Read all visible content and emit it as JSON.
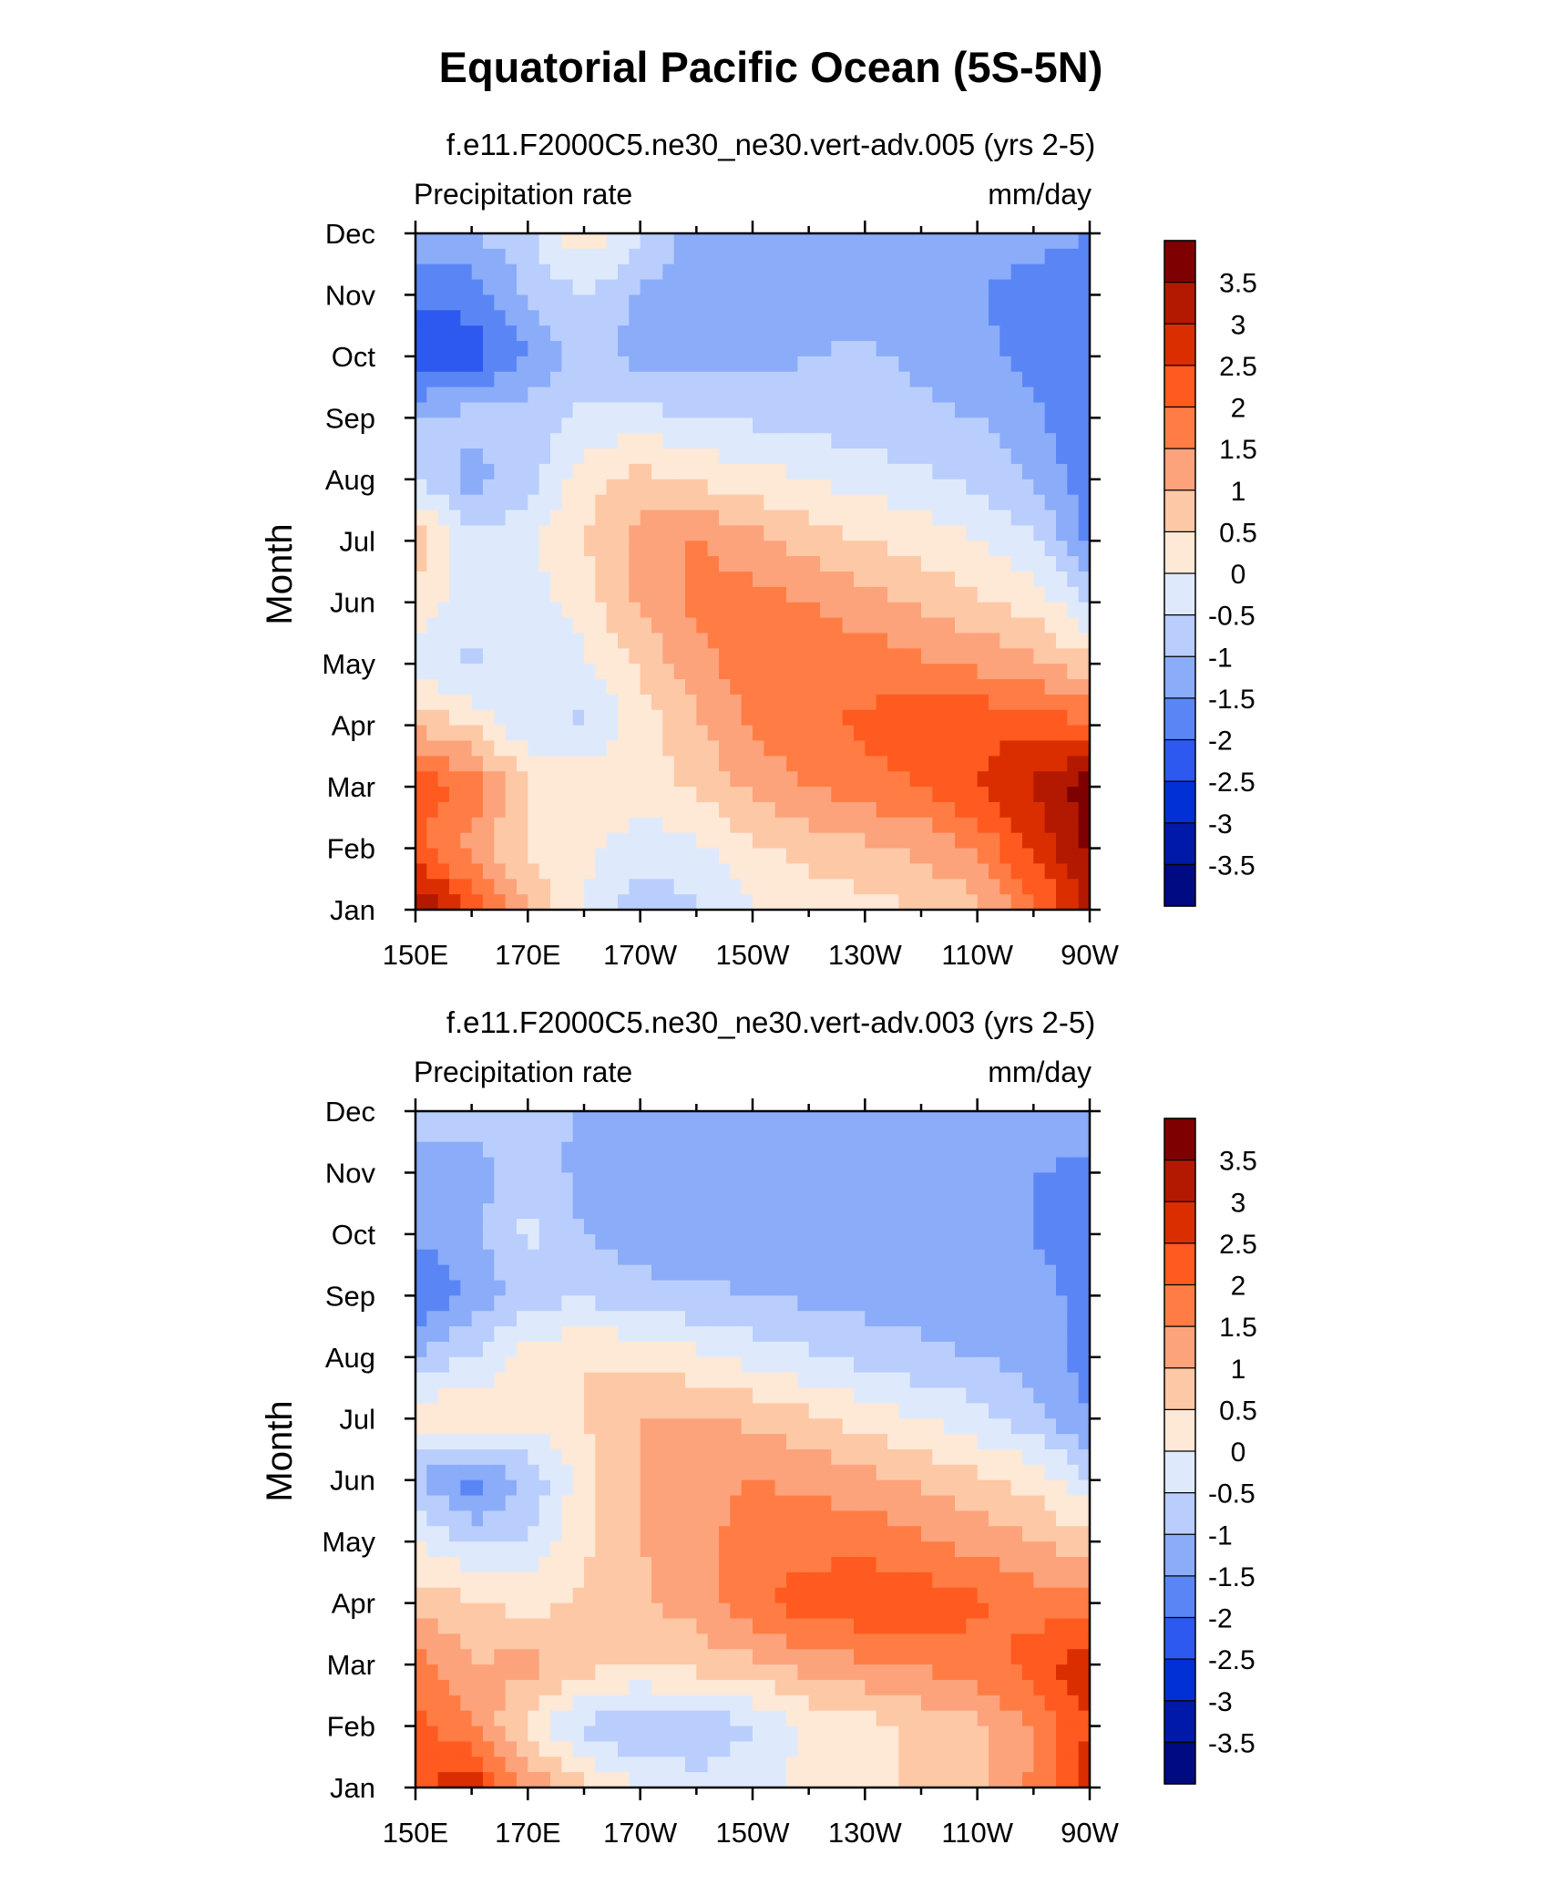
{
  "title": "Equatorial Pacific Ocean (5S-5N)",
  "chart_data": [
    {
      "type": "heatmap",
      "subtitle": "f.e11.F2000C5.ne30_ne30.vert-adv.005 (yrs 2-5)",
      "left_label": "Precipitation rate",
      "right_label": "mm/day",
      "ylabel": "Month",
      "x_ticks": [
        "150E",
        "170E",
        "170W",
        "150W",
        "130W",
        "110W",
        "90W"
      ],
      "y_ticks": [
        "Jan",
        "Feb",
        "Mar",
        "Apr",
        "May",
        "Jun",
        "Jul",
        "Aug",
        "Sep",
        "Oct",
        "Nov",
        "Dec"
      ],
      "xlim_deg_east": [
        150,
        270
      ],
      "colorbar": {
        "labels": [
          "3.5",
          "3",
          "2.5",
          "2",
          "1.5",
          "1",
          "0.5",
          "0",
          "-0.5",
          "-1",
          "-1.5",
          "-2",
          "-2.5",
          "-3",
          "-3.5"
        ],
        "levels": [
          3.5,
          3,
          2.5,
          2,
          1.5,
          1,
          0.5,
          0,
          -0.5,
          -1,
          -1.5,
          -2,
          -2.5,
          -3,
          -3.5
        ],
        "colors": [
          "#7f0000",
          "#b31900",
          "#db2e00",
          "#ff5a1f",
          "#ff7d45",
          "#fca37c",
          "#fdc8a6",
          "#fee8d6",
          "#deeafc",
          "#b9cefc",
          "#8bacf8",
          "#5a86f5",
          "#2d59f0",
          "#0030d6",
          "#0019a8",
          "#000a82"
        ]
      },
      "x_lon": [
        150,
        160,
        170,
        180,
        190,
        200,
        210,
        220,
        230,
        240,
        250,
        260,
        270
      ],
      "values": [
        [
          3.6,
          2.4,
          1.0,
          0.0,
          -0.8,
          -0.6,
          0.0,
          0.2,
          0.3,
          0.5,
          0.8,
          1.8,
          3.2
        ],
        [
          2.1,
          1.3,
          0.4,
          0.1,
          -0.3,
          -0.1,
          0.4,
          0.7,
          0.9,
          1.1,
          1.6,
          2.6,
          3.6
        ],
        [
          2.3,
          1.9,
          0.5,
          0.4,
          0.3,
          0.6,
          1.1,
          1.5,
          1.8,
          2.0,
          2.5,
          3.1,
          3.8
        ],
        [
          0.9,
          0.4,
          -0.4,
          -0.6,
          0.2,
          0.9,
          1.6,
          1.9,
          2.1,
          2.3,
          2.4,
          2.3,
          2.1
        ],
        [
          -0.2,
          -0.6,
          -0.3,
          -0.1,
          0.6,
          1.3,
          1.8,
          1.9,
          1.8,
          1.6,
          1.4,
          1.1,
          0.6
        ],
        [
          0.3,
          -0.3,
          -0.2,
          0.2,
          1.1,
          1.6,
          1.7,
          1.5,
          1.2,
          0.9,
          0.6,
          0.3,
          -0.5
        ],
        [
          0.9,
          -0.4,
          -0.1,
          0.5,
          1.2,
          1.6,
          1.2,
          0.8,
          0.5,
          0.3,
          0.0,
          -0.4,
          -1.6
        ],
        [
          -0.6,
          -1.2,
          -0.8,
          0.3,
          0.7,
          0.4,
          0.2,
          0.0,
          -0.2,
          -0.4,
          -0.6,
          -1.1,
          -1.8
        ],
        [
          -0.9,
          -0.8,
          -0.7,
          -0.4,
          -0.3,
          -0.5,
          -0.6,
          -0.7,
          -0.8,
          -0.9,
          -1.0,
          -1.4,
          -2.0
        ],
        [
          -2.6,
          -2.3,
          -1.5,
          -0.8,
          -1.2,
          -1.3,
          -1.2,
          -1.0,
          -0.9,
          -1.1,
          -1.3,
          -1.7,
          -1.9
        ],
        [
          -1.7,
          -1.8,
          -0.9,
          -0.5,
          -1.1,
          -1.4,
          -1.4,
          -1.3,
          -1.3,
          -1.4,
          -1.5,
          -1.7,
          -1.9
        ],
        [
          -1.2,
          -1.0,
          -0.6,
          0.4,
          -0.4,
          -1.2,
          -1.3,
          -1.2,
          -1.2,
          -1.3,
          -1.2,
          -1.3,
          -1.5
        ]
      ]
    },
    {
      "type": "heatmap",
      "subtitle": "f.e11.F2000C5.ne30_ne30.vert-adv.003 (yrs 2-5)",
      "left_label": "Precipitation rate",
      "right_label": "mm/day",
      "ylabel": "Month",
      "x_ticks": [
        "150E",
        "170E",
        "170W",
        "150W",
        "130W",
        "110W",
        "90W"
      ],
      "y_ticks": [
        "Jan",
        "Feb",
        "Mar",
        "Apr",
        "May",
        "Jun",
        "Jul",
        "Aug",
        "Sep",
        "Oct",
        "Nov",
        "Dec"
      ],
      "xlim_deg_east": [
        150,
        270
      ],
      "colorbar": {
        "labels": [
          "3.5",
          "3",
          "2.5",
          "2",
          "1.5",
          "1",
          "0.5",
          "0",
          "-0.5",
          "-1",
          "-1.5",
          "-2",
          "-2.5",
          "-3",
          "-3.5"
        ],
        "levels": [
          3.5,
          3,
          2.5,
          2,
          1.5,
          1,
          0.5,
          0,
          -0.5,
          -1,
          -1.5,
          -2,
          -2.5,
          -3,
          -3.5
        ],
        "colors": [
          "#7f0000",
          "#b31900",
          "#db2e00",
          "#ff5a1f",
          "#ff7d45",
          "#fca37c",
          "#fdc8a6",
          "#fee8d6",
          "#deeafc",
          "#b9cefc",
          "#8bacf8",
          "#5a86f5",
          "#2d59f0",
          "#0030d6",
          "#0019a8",
          "#000a82"
        ]
      },
      "x_lon": [
        150,
        160,
        170,
        180,
        190,
        200,
        210,
        220,
        230,
        240,
        250,
        260,
        270
      ],
      "values": [
        [
          2.4,
          2.8,
          1.4,
          0.6,
          0.0,
          -0.3,
          -0.3,
          0.2,
          0.4,
          0.6,
          0.8,
          1.6,
          2.8
        ],
        [
          2.2,
          1.6,
          0.3,
          -0.6,
          -1.1,
          -0.9,
          -0.5,
          0.1,
          0.3,
          0.6,
          0.9,
          1.5,
          2.5
        ],
        [
          1.8,
          1.0,
          1.2,
          0.7,
          0.6,
          0.7,
          0.9,
          1.2,
          1.4,
          1.6,
          1.8,
          2.2,
          3.0
        ],
        [
          0.8,
          0.6,
          0.3,
          0.6,
          0.9,
          1.2,
          1.9,
          2.3,
          2.4,
          2.3,
          2.1,
          1.8,
          1.6
        ],
        [
          0.1,
          -0.6,
          -0.5,
          0.4,
          1.0,
          1.4,
          1.7,
          1.8,
          1.8,
          1.6,
          1.3,
          1.0,
          0.7
        ],
        [
          -1.0,
          -1.8,
          -0.9,
          0.3,
          1.0,
          1.3,
          1.5,
          1.4,
          1.2,
          0.9,
          0.6,
          0.3,
          -0.5
        ],
        [
          0.3,
          0.6,
          0.2,
          0.5,
          1.0,
          1.1,
          0.9,
          0.6,
          0.3,
          0.0,
          -0.3,
          -0.8,
          -1.5
        ],
        [
          -0.9,
          -0.5,
          0.2,
          0.5,
          0.4,
          0.1,
          -0.2,
          -0.4,
          -0.7,
          -0.9,
          -1.0,
          -1.2,
          -1.8
        ],
        [
          -2.1,
          -1.4,
          -0.7,
          -0.6,
          -0.8,
          -0.9,
          -1.0,
          -1.1,
          -1.2,
          -1.2,
          -1.3,
          -1.4,
          -1.6
        ],
        [
          -1.4,
          -1.1,
          -0.4,
          -1.0,
          -1.3,
          -1.3,
          -1.4,
          -1.5,
          -1.4,
          -1.3,
          -1.4,
          -1.5,
          -1.7
        ],
        [
          -1.3,
          -1.4,
          -0.6,
          -1.2,
          -1.5,
          -1.5,
          -1.5,
          -1.5,
          -1.4,
          -1.4,
          -1.5,
          -1.5,
          -1.6
        ],
        [
          -0.8,
          -0.6,
          -0.7,
          -1.1,
          -1.2,
          -1.2,
          -1.2,
          -1.2,
          -1.2,
          -1.2,
          -1.2,
          -1.2,
          -1.3
        ]
      ]
    }
  ]
}
